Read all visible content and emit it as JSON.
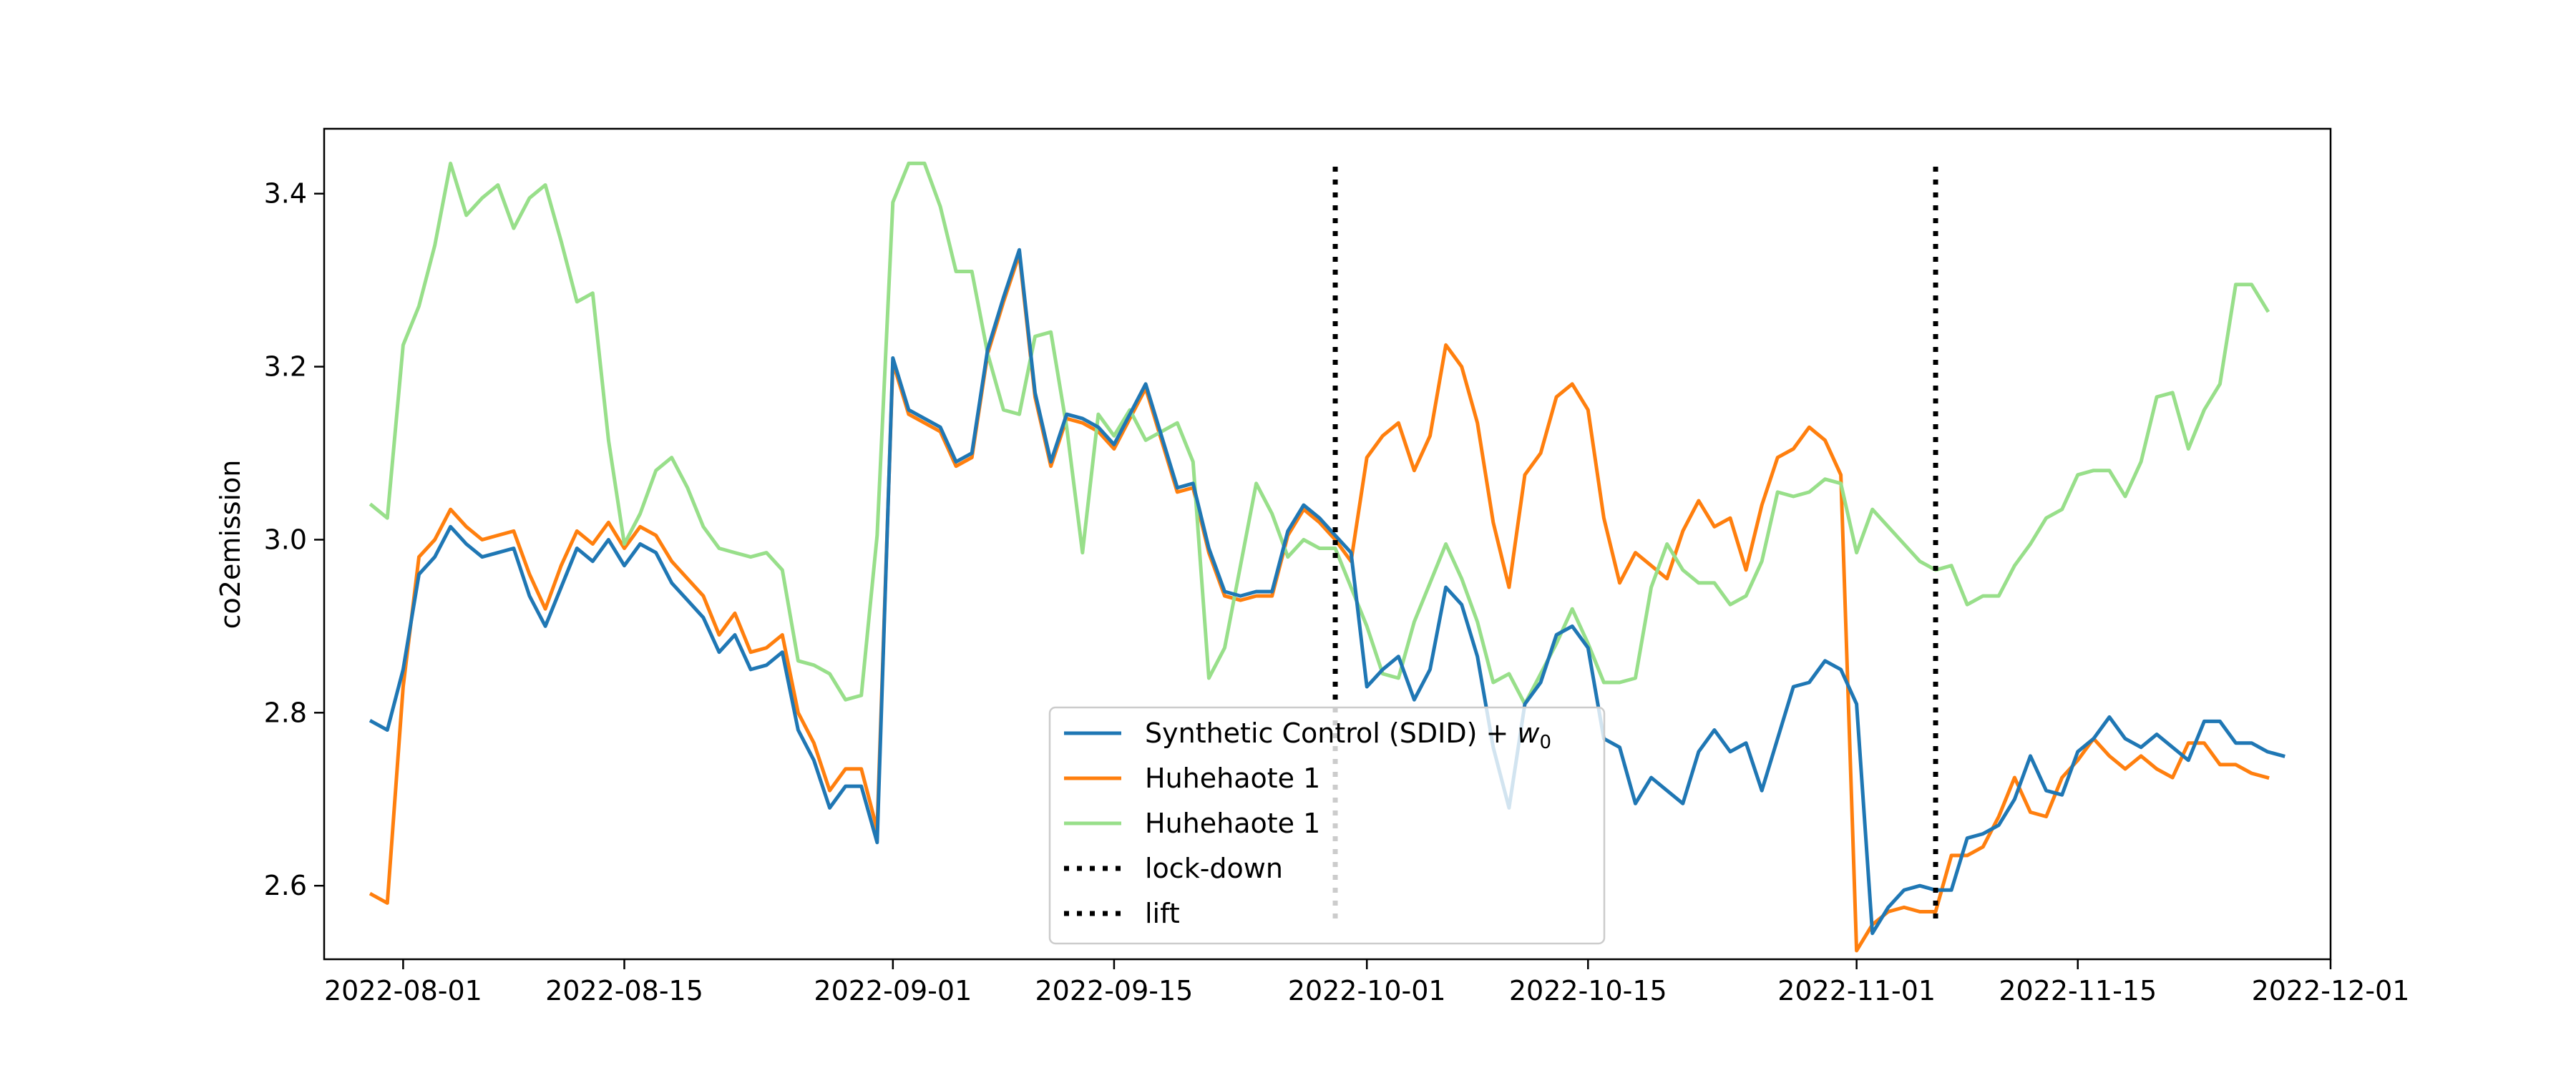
{
  "chart_data": {
    "type": "line",
    "title": "",
    "xlabel": "",
    "ylabel": "co2emission",
    "x_start": "2022-07-30",
    "x_step_days": 1,
    "xlim": [
      "2022-07-27",
      "2022-12-01"
    ],
    "ylim": [
      2.515,
      3.475
    ],
    "x_ticks": [
      "2022-08-01",
      "2022-08-15",
      "2022-09-01",
      "2022-09-15",
      "2022-10-01",
      "2022-10-15",
      "2022-11-01",
      "2022-11-15",
      "2022-12-01"
    ],
    "y_ticks": [
      2.6,
      2.8,
      3.0,
      3.2,
      3.4
    ],
    "grid": false,
    "legend_position": "lower center",
    "series": [
      {
        "name": "Synthetic Control (SDID) + w0",
        "color": "#1f77b4",
        "values": [
          2.79,
          2.78,
          2.85,
          2.96,
          2.98,
          3.015,
          2.995,
          2.98,
          2.985,
          2.99,
          2.935,
          2.9,
          2.945,
          2.99,
          2.975,
          3.0,
          2.97,
          2.995,
          2.985,
          2.95,
          2.93,
          2.91,
          2.87,
          2.89,
          2.85,
          2.855,
          2.87,
          2.78,
          2.745,
          2.69,
          2.715,
          2.715,
          2.65,
          3.21,
          3.15,
          3.14,
          3.13,
          3.09,
          3.1,
          3.22,
          3.28,
          3.335,
          3.17,
          3.09,
          3.145,
          3.14,
          3.13,
          3.11,
          3.145,
          3.18,
          3.12,
          3.06,
          3.065,
          2.99,
          2.94,
          2.935,
          2.94,
          2.94,
          3.01,
          3.04,
          3.025,
          3.005,
          2.985,
          2.83,
          2.85,
          2.865,
          2.815,
          2.85,
          2.945,
          2.925,
          2.865,
          2.76,
          2.69,
          2.81,
          2.835,
          2.89,
          2.9,
          2.875,
          2.77,
          2.76,
          2.695,
          2.725,
          2.71,
          2.695,
          2.755,
          2.78,
          2.755,
          2.765,
          2.71,
          2.77,
          2.83,
          2.835,
          2.86,
          2.85,
          2.81,
          2.545,
          2.575,
          2.595,
          2.6,
          2.595,
          2.595,
          2.655,
          2.66,
          2.67,
          2.7,
          2.75,
          2.71,
          2.705,
          2.755,
          2.77,
          2.795,
          2.77,
          2.76,
          2.775,
          2.76,
          2.745,
          2.79,
          2.79,
          2.765,
          2.765,
          2.755,
          2.75
        ]
      },
      {
        "name": "Huhehaote 1",
        "color": "#ff7f0e",
        "values": [
          2.59,
          2.58,
          2.83,
          2.98,
          3.0,
          3.035,
          3.015,
          3.0,
          3.005,
          3.01,
          2.96,
          2.92,
          2.97,
          3.01,
          2.995,
          3.02,
          2.99,
          3.015,
          3.005,
          2.975,
          2.955,
          2.935,
          2.89,
          2.915,
          2.87,
          2.875,
          2.89,
          2.8,
          2.765,
          2.71,
          2.735,
          2.735,
          2.665,
          3.205,
          3.145,
          3.135,
          3.125,
          3.085,
          3.095,
          3.215,
          3.275,
          3.33,
          3.165,
          3.085,
          3.14,
          3.135,
          3.125,
          3.105,
          3.14,
          3.175,
          3.115,
          3.055,
          3.06,
          2.985,
          2.935,
          2.93,
          2.935,
          2.935,
          3.005,
          3.035,
          3.02,
          3.0,
          2.975,
          3.095,
          3.12,
          3.135,
          3.08,
          3.12,
          3.225,
          3.2,
          3.135,
          3.02,
          2.945,
          3.075,
          3.1,
          3.165,
          3.18,
          3.15,
          3.025,
          2.95,
          2.985,
          2.97,
          2.955,
          3.01,
          3.045,
          3.015,
          3.025,
          2.965,
          3.04,
          3.095,
          3.105,
          3.13,
          3.115,
          3.075,
          2.525,
          2.555,
          2.57,
          2.575,
          2.57,
          2.57,
          2.635,
          2.635,
          2.645,
          2.68,
          2.725,
          2.685,
          2.68,
          2.725,
          2.745,
          2.77,
          2.75,
          2.735,
          2.75,
          2.735,
          2.725,
          2.765,
          2.765,
          2.74,
          2.74,
          2.73,
          2.725
        ]
      },
      {
        "name": "Huhehaote 1",
        "color": "#98df8a",
        "values": [
          3.04,
          3.025,
          3.225,
          3.27,
          3.34,
          3.435,
          3.375,
          3.395,
          3.41,
          3.36,
          3.395,
          3.41,
          3.345,
          3.275,
          3.285,
          3.115,
          2.995,
          3.03,
          3.08,
          3.095,
          3.06,
          3.015,
          2.99,
          2.985,
          2.98,
          2.985,
          2.965,
          2.86,
          2.855,
          2.845,
          2.815,
          2.82,
          3.005,
          3.39,
          3.435,
          3.435,
          3.385,
          3.31,
          3.31,
          3.215,
          3.15,
          3.145,
          3.235,
          3.24,
          3.13,
          2.985,
          3.145,
          3.12,
          3.15,
          3.115,
          3.125,
          3.135,
          3.09,
          2.84,
          2.875,
          2.97,
          3.065,
          3.03,
          2.98,
          3.0,
          2.99,
          2.99,
          2.945,
          2.9,
          2.845,
          2.84,
          2.905,
          2.95,
          2.995,
          2.955,
          2.905,
          2.835,
          2.845,
          2.81,
          2.845,
          2.88,
          2.92,
          2.88,
          2.835,
          2.835,
          2.84,
          2.945,
          2.995,
          2.965,
          2.95,
          2.95,
          2.925,
          2.935,
          2.975,
          3.055,
          3.05,
          3.055,
          3.07,
          3.065,
          2.985,
          3.035,
          3.015,
          2.995,
          2.975,
          2.965,
          2.97,
          2.925,
          2.935,
          2.935,
          2.97,
          2.995,
          3.025,
          3.035,
          3.075,
          3.08,
          3.08,
          3.05,
          3.09,
          3.165,
          3.17,
          3.105,
          3.15,
          3.18,
          3.295,
          3.295,
          3.265
        ]
      }
    ],
    "vlines": [
      {
        "name": "lock-down",
        "date": "2022-09-29",
        "color": "#000000",
        "style": "dotted"
      },
      {
        "name": "lift",
        "date": "2022-11-06",
        "color": "#000000",
        "style": "dotted"
      }
    ]
  }
}
